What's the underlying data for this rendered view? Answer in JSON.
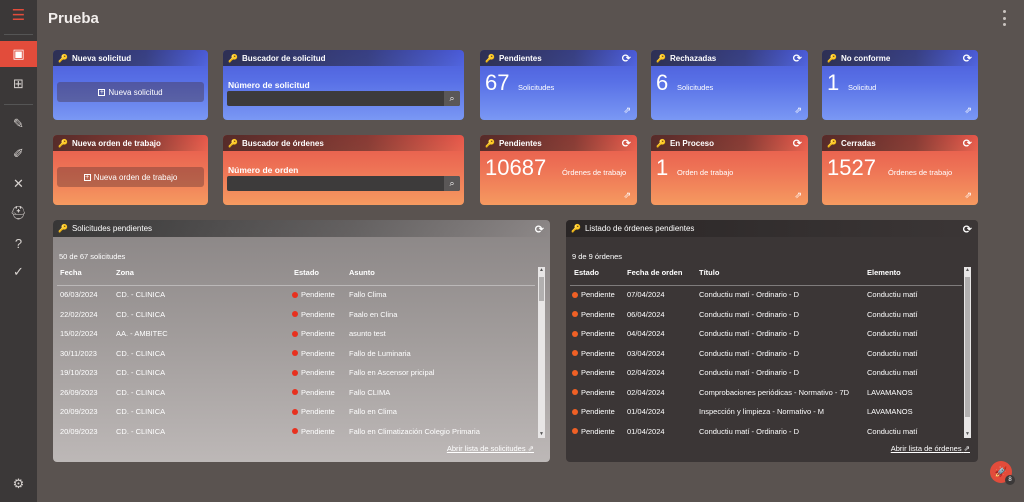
{
  "header": {
    "title": "Prueba"
  },
  "sidebar": {
    "menu_icon": "menu-icon",
    "items": [
      {
        "icon": "layout-icon",
        "active": true
      },
      {
        "icon": "grid-icon",
        "active": false
      },
      {
        "icon": "wrench-icon",
        "active": false
      },
      {
        "icon": "brush-icon",
        "active": false
      },
      {
        "icon": "tools-icon",
        "active": false
      },
      {
        "icon": "helmet-icon",
        "active": false
      },
      {
        "icon": "help-icon",
        "active": false
      },
      {
        "icon": "check-circle-icon",
        "active": false
      }
    ],
    "settings_icon": "gear-icon"
  },
  "cards_requests": {
    "new": {
      "title": "Nueva solicitud",
      "button": "Nueva solicitud"
    },
    "search": {
      "title": "Buscador de solicitud",
      "label": "Número de solicitud",
      "value": ""
    },
    "pending": {
      "title": "Pendientes",
      "value": "67",
      "unit": "Solicitudes"
    },
    "rejected": {
      "title": "Rechazadas",
      "value": "6",
      "unit": "Solicitudes"
    },
    "nonconforming": {
      "title": "No conforme",
      "value": "1",
      "unit": "Solicitud"
    }
  },
  "cards_orders": {
    "new": {
      "title": "Nueva orden de trabajo",
      "button": "Nueva orden de trabajo"
    },
    "search": {
      "title": "Buscador de órdenes",
      "label": "Número de orden",
      "value": ""
    },
    "pending": {
      "title": "Pendientes",
      "value": "10687",
      "unit": "Órdenes de trabajo"
    },
    "in_process": {
      "title": "En Proceso",
      "value": "1",
      "unit": "Orden de trabajo"
    },
    "closed": {
      "title": "Cerradas",
      "value": "1527",
      "unit": "Órdenes de trabajo"
    }
  },
  "requests_panel": {
    "title": "Solicitudes pendientes",
    "count": "50 de 67 solicitudes",
    "columns": [
      "Fecha",
      "Zona",
      "Estado",
      "Asunto"
    ],
    "rows": [
      [
        "06/03/2024",
        "CD. - CLINICA",
        "Pendiente",
        "Fallo Clima"
      ],
      [
        "22/02/2024",
        "CD. - CLINICA",
        "Pendiente",
        "Faalo en Clina"
      ],
      [
        "15/02/2024",
        "AA. - AMBITEC",
        "Pendiente",
        "asunto test"
      ],
      [
        "30/11/2023",
        "CD. - CLINICA",
        "Pendiente",
        "Fallo de Luminaria"
      ],
      [
        "19/10/2023",
        "CD. - CLINICA",
        "Pendiente",
        "Fallo en Ascensor pricipal"
      ],
      [
        "26/09/2023",
        "CD. - CLINICA",
        "Pendiente",
        "Fallo CLIMA"
      ],
      [
        "20/09/2023",
        "CD. - CLINICA",
        "Pendiente",
        "Fallo en Clima"
      ],
      [
        "20/09/2023",
        "CD. - CLINICA",
        "Pendiente",
        "Fallo en Climatización Colegio Primaria"
      ]
    ],
    "link": "Abrir lista de solicitudes"
  },
  "orders_panel": {
    "title": "Listado de órdenes pendientes",
    "count": "9 de 9 órdenes",
    "columns": [
      "Estado",
      "Fecha de orden",
      "Título",
      "Elemento"
    ],
    "rows": [
      [
        "Pendiente",
        "07/04/2024",
        "Conductiu matí - Ordinario - D",
        "Conductiu matí"
      ],
      [
        "Pendiente",
        "06/04/2024",
        "Conductiu matí - Ordinario - D",
        "Conductiu matí"
      ],
      [
        "Pendiente",
        "04/04/2024",
        "Conductiu matí - Ordinario - D",
        "Conductiu matí"
      ],
      [
        "Pendiente",
        "03/04/2024",
        "Conductiu matí - Ordinario - D",
        "Conductiu matí"
      ],
      [
        "Pendiente",
        "02/04/2024",
        "Conductiu matí - Ordinario - D",
        "Conductiu matí"
      ],
      [
        "Pendiente",
        "02/04/2024",
        "Comprobaciones periódicas - Normativo - 7D",
        "LAVAMANOS"
      ],
      [
        "Pendiente",
        "01/04/2024",
        "Inspección y limpieza - Normativo - M",
        "LAVAMANOS"
      ],
      [
        "Pendiente",
        "01/04/2024",
        "Conductiu matí - Ordinario - D",
        "Conductiu matí"
      ]
    ],
    "link": "Abrir lista de órdenes"
  },
  "fab": {
    "icon": "rocket-icon",
    "badge": "8"
  }
}
